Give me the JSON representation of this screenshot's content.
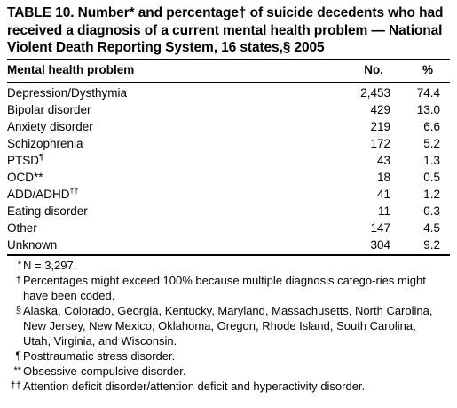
{
  "title": "TABLE 10. Number* and percentage† of suicide decedents who had received a diagnosis of a current mental health problem — National Violent Death Reporting System, 16 states,§ 2005",
  "columns": {
    "problem": "Mental health problem",
    "no": "No.",
    "pct": "%"
  },
  "rows": [
    {
      "problem": "Depression/Dysthymia",
      "sup": "",
      "no": "2,453",
      "pct": "74.4"
    },
    {
      "problem": "Bipolar disorder",
      "sup": "",
      "no": "429",
      "pct": "13.0"
    },
    {
      "problem": "Anxiety disorder",
      "sup": "",
      "no": "219",
      "pct": "6.6"
    },
    {
      "problem": "Schizophrenia",
      "sup": "",
      "no": "172",
      "pct": "5.2"
    },
    {
      "problem": "PTSD",
      "sup": "¶",
      "no": "43",
      "pct": "1.3"
    },
    {
      "problem": "OCD**",
      "sup": "",
      "no": "18",
      "pct": "0.5"
    },
    {
      "problem": "ADD/ADHD",
      "sup": "††",
      "no": "41",
      "pct": "1.2"
    },
    {
      "problem": "Eating disorder",
      "sup": "",
      "no": "11",
      "pct": "0.3"
    },
    {
      "problem": "Other",
      "sup": "",
      "no": "147",
      "pct": "4.5"
    },
    {
      "problem": "Unknown",
      "sup": "",
      "no": "304",
      "pct": "9.2"
    }
  ],
  "footnotes": [
    {
      "mark": "*",
      "text": "N = 3,297."
    },
    {
      "mark": "†",
      "text": "Percentages might exceed 100% because multiple diagnosis catego-ries might have been coded."
    },
    {
      "mark": "§",
      "text": "Alaska, Colorado, Georgia, Kentucky, Maryland, Massachusetts, North Carolina, New Jersey, New Mexico, Oklahoma, Oregon, Rhode Island, South Carolina, Utah, Virginia, and Wisconsin."
    },
    {
      "mark": "¶",
      "text": "Posttraumatic stress disorder."
    },
    {
      "mark": "**",
      "text": "Obsessive-compulsive disorder."
    },
    {
      "mark": "††",
      "text": "Attention deficit disorder/attention deficit and hyperactivity disorder."
    }
  ]
}
